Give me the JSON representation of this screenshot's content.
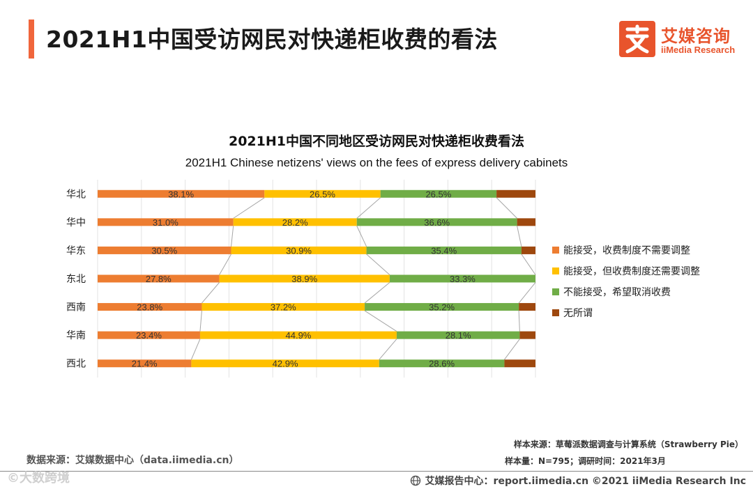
{
  "header": {
    "title": "2021H1中国受访网民对快递柜收费的看法",
    "logo_name": "艾媒咨询",
    "logo_subtitle": "iiMedia Research",
    "brand_color": "#e8542c"
  },
  "chart_data": {
    "type": "bar",
    "orientation": "horizontal",
    "stacked": true,
    "normalized": true,
    "title": "2021H1中国不同地区受访网民对快递柜收费看法",
    "subtitle": "2021H1 Chinese netizens' views on the fees of express delivery cabinets",
    "categories": [
      "华北",
      "华中",
      "华东",
      "东北",
      "西南",
      "华南",
      "西北"
    ],
    "series": [
      {
        "name": "能接受，收费制度不需要调整",
        "color": "#ed7d31",
        "values": [
          38.1,
          31.0,
          30.5,
          27.8,
          23.8,
          23.4,
          21.4
        ],
        "labels": [
          "38.1%",
          "31.0%",
          "30.5%",
          "27.8%",
          "23.8%",
          "23.4%",
          "21.4%"
        ]
      },
      {
        "name": "能接受，但收费制度还需要调整",
        "color": "#ffc000",
        "values": [
          26.5,
          28.2,
          30.9,
          38.9,
          37.2,
          44.9,
          42.9
        ],
        "labels": [
          "26.5%",
          "28.2%",
          "30.9%",
          "38.9%",
          "37.2%",
          "44.9%",
          "42.9%"
        ]
      },
      {
        "name": "不能接受，希望取消收费",
        "color": "#70ad47",
        "values": [
          26.5,
          36.6,
          35.4,
          33.3,
          35.2,
          28.1,
          28.6
        ],
        "labels": [
          "26.5%",
          "36.6%",
          "35.4%",
          "33.3%",
          "35.2%",
          "28.1%",
          "28.6%"
        ]
      },
      {
        "name": "无所谓",
        "color": "#9e480e",
        "values": [
          8.9,
          4.2,
          3.2,
          0.0,
          3.8,
          3.6,
          7.1
        ],
        "labels": [
          "",
          "",
          "",
          "",
          "",
          "",
          ""
        ]
      }
    ],
    "xlim": [
      0,
      100
    ],
    "legend": "right",
    "grid": true
  },
  "footer": {
    "data_source": "数据来源：艾媒数据中心（data.iimedia.cn）",
    "sample_source": "样本来源：草莓派数据调查与计算系统（Strawberry Pie）",
    "sample_size": "样本量：N=795；调研时间：2021年3月",
    "report_center": "艾媒报告中心：report.iimedia.cn ©2021 iiMedia Research Inc",
    "watermark": "©大数跨境"
  }
}
